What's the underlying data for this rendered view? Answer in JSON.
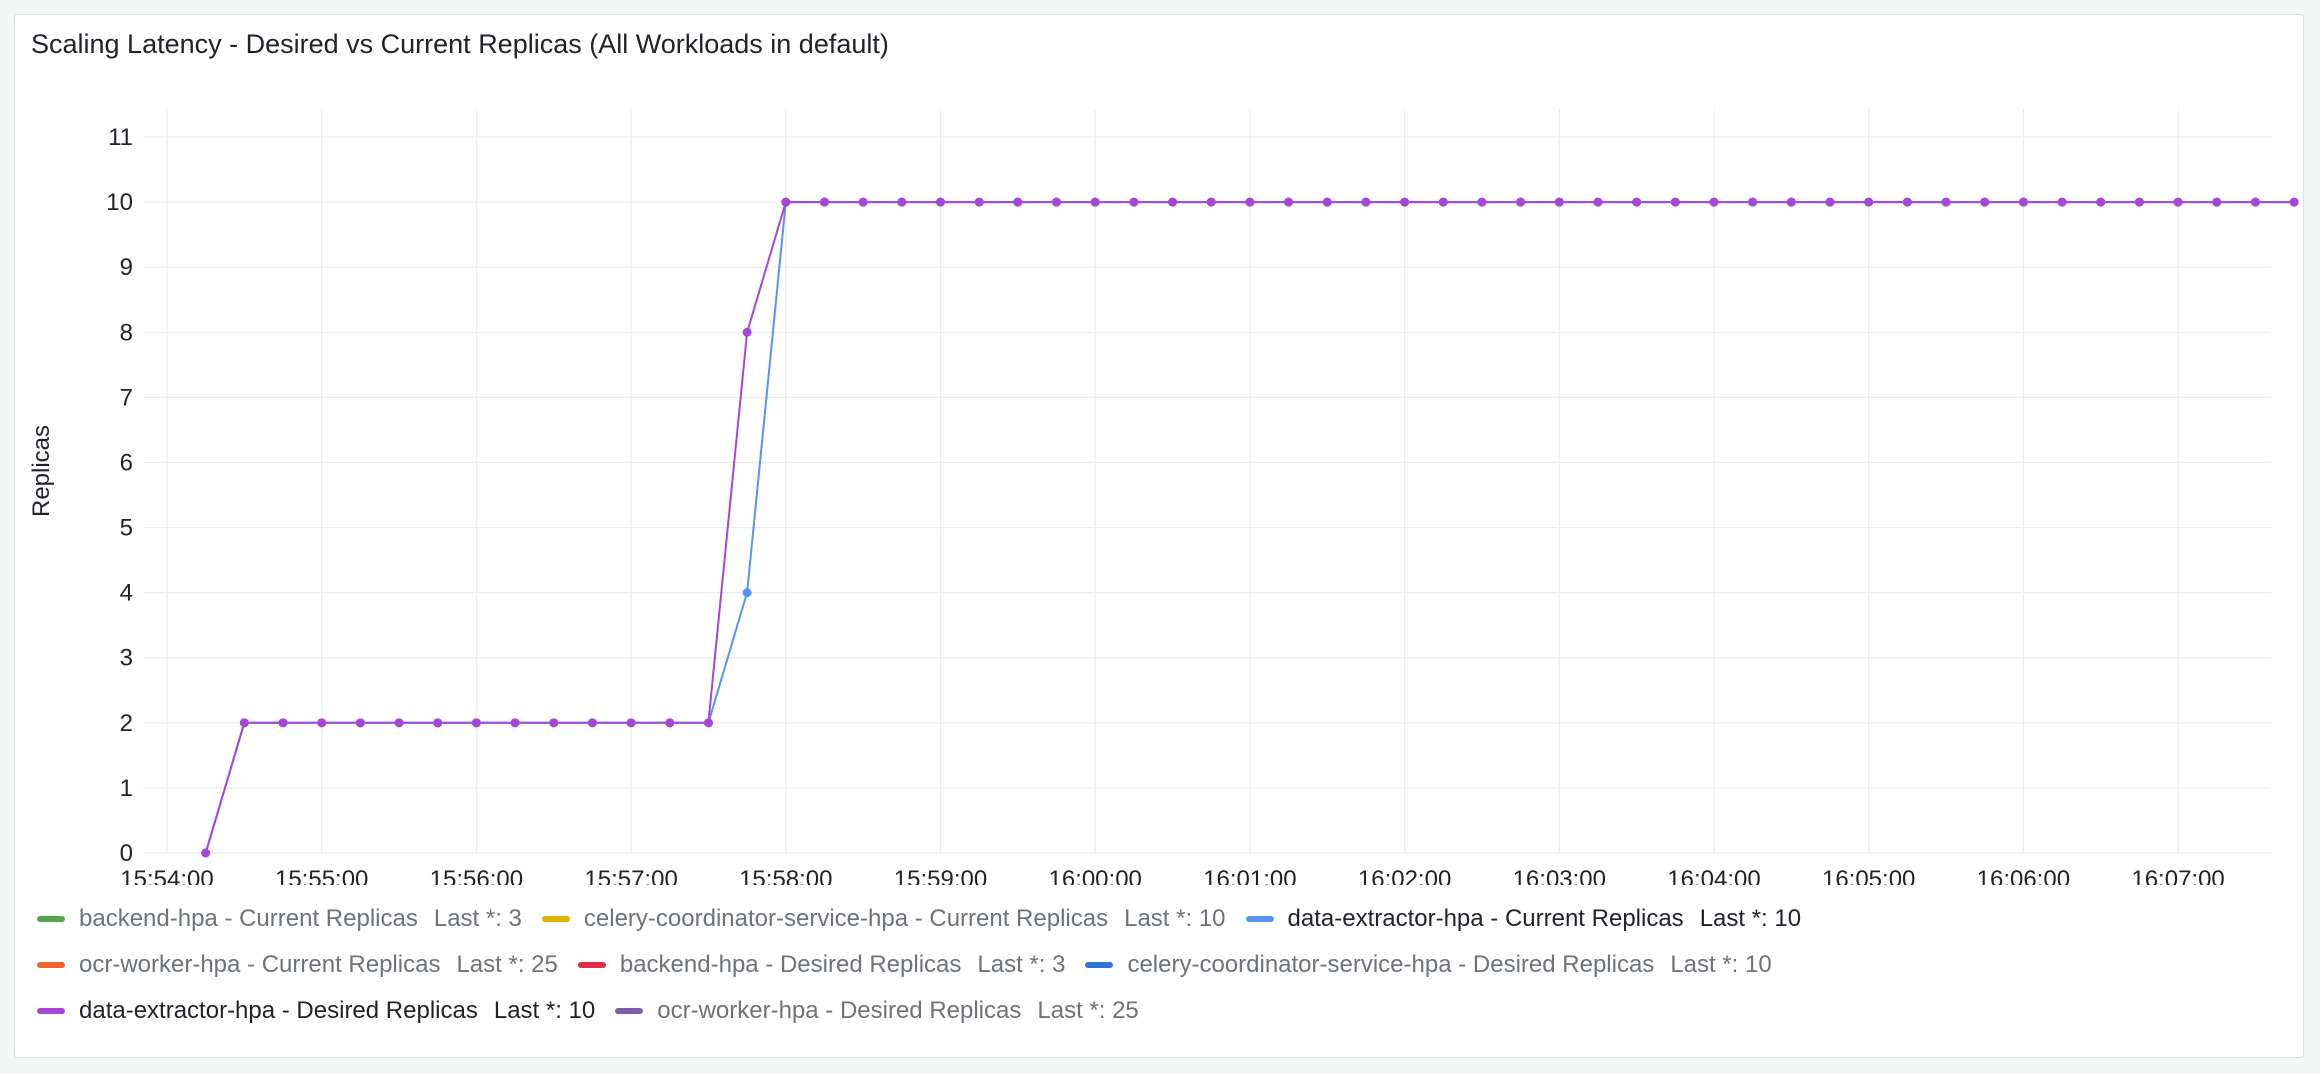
{
  "panel": {
    "title": "Scaling Latency - Desired vs Current Replicas (All Workloads in default)"
  },
  "chart_data": {
    "type": "line",
    "title": "Scaling Latency - Desired vs Current Replicas (All Workloads in default)",
    "xlabel": "",
    "ylabel": "Replicas",
    "ylim": [
      0,
      11
    ],
    "yticks": [
      "0",
      "1",
      "2",
      "3",
      "4",
      "5",
      "6",
      "7",
      "8",
      "9",
      "10",
      "11"
    ],
    "xticks": [
      "15:54:00",
      "15:55:00",
      "15:56:00",
      "15:57:00",
      "15:58:00",
      "15:59:00",
      "16:00:00",
      "16:01:00",
      "16:02:00",
      "16:03:00",
      "16:04:00",
      "16:05:00",
      "16:06:00",
      "16:07:00"
    ],
    "xlim": [
      "15:54:00",
      "16:07:50"
    ],
    "grid": true,
    "legend_position": "bottom",
    "x": [
      "15:54:15",
      "15:54:30",
      "15:54:45",
      "15:55:00",
      "15:55:15",
      "15:55:30",
      "15:55:45",
      "15:56:00",
      "15:56:15",
      "15:56:30",
      "15:56:45",
      "15:57:00",
      "15:57:15",
      "15:57:30",
      "15:57:45",
      "15:58:00",
      "15:58:15",
      "15:58:30",
      "15:58:45",
      "15:59:00",
      "15:59:15",
      "15:59:30",
      "15:59:45",
      "16:00:00",
      "16:00:15",
      "16:00:30",
      "16:00:45",
      "16:01:00",
      "16:01:15",
      "16:01:30",
      "16:01:45",
      "16:02:00",
      "16:02:15",
      "16:02:30",
      "16:02:45",
      "16:03:00",
      "16:03:15",
      "16:03:30",
      "16:03:45",
      "16:04:00",
      "16:04:15",
      "16:04:30",
      "16:04:45",
      "16:05:00",
      "16:05:15",
      "16:05:30",
      "16:05:45",
      "16:06:00",
      "16:06:15",
      "16:06:30",
      "16:06:45",
      "16:07:00",
      "16:07:15",
      "16:07:30",
      "16:07:45"
    ],
    "series": [
      {
        "name": "data-extractor-hpa - Current Replicas",
        "color": "#5794f2",
        "values": [
          0,
          2,
          2,
          2,
          2,
          2,
          2,
          2,
          2,
          2,
          2,
          2,
          2,
          2,
          4,
          10,
          10,
          10,
          10,
          10,
          10,
          10,
          10,
          10,
          10,
          10,
          10,
          10,
          10,
          10,
          10,
          10,
          10,
          10,
          10,
          10,
          10,
          10,
          10,
          10,
          10,
          10,
          10,
          10,
          10,
          10,
          10,
          10,
          10,
          10,
          10,
          10,
          10,
          10,
          10
        ]
      },
      {
        "name": "data-extractor-hpa - Desired Replicas",
        "color": "#a645d6",
        "values": [
          0,
          2,
          2,
          2,
          2,
          2,
          2,
          2,
          2,
          2,
          2,
          2,
          2,
          2,
          8,
          10,
          10,
          10,
          10,
          10,
          10,
          10,
          10,
          10,
          10,
          10,
          10,
          10,
          10,
          10,
          10,
          10,
          10,
          10,
          10,
          10,
          10,
          10,
          10,
          10,
          10,
          10,
          10,
          10,
          10,
          10,
          10,
          10,
          10,
          10,
          10,
          10,
          10,
          10,
          10
        ]
      }
    ]
  },
  "legend": [
    {
      "name": "backend-hpa - Current Replicas",
      "last": "Last *: 3",
      "color": "#56a64b",
      "active": false
    },
    {
      "name": "celery-coordinator-service-hpa - Current Replicas",
      "last": "Last *: 10",
      "color": "#e0b400",
      "active": false
    },
    {
      "name": "data-extractor-hpa - Current Replicas",
      "last": "Last *: 10",
      "color": "#5794f2",
      "active": true
    },
    {
      "name": "ocr-worker-hpa - Current Replicas",
      "last": "Last *: 25",
      "color": "#f2622e",
      "active": false
    },
    {
      "name": "backend-hpa - Desired Replicas",
      "last": "Last *: 3",
      "color": "#e02f44",
      "active": false
    },
    {
      "name": "celery-coordinator-service-hpa - Desired Replicas",
      "last": "Last *: 10",
      "color": "#3274d9",
      "active": false
    },
    {
      "name": "data-extractor-hpa - Desired Replicas",
      "last": "Last *: 10",
      "color": "#a645d6",
      "active": true
    },
    {
      "name": "ocr-worker-hpa - Desired Replicas",
      "last": "Last *: 25",
      "color": "#7c5cad",
      "active": false
    }
  ]
}
